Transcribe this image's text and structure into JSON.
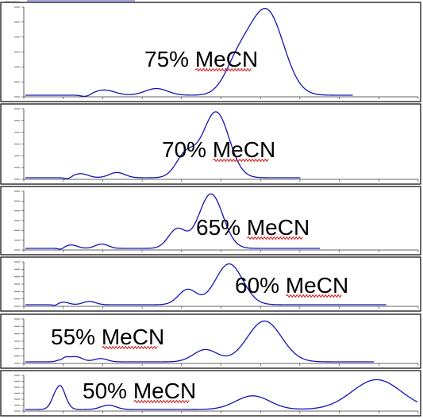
{
  "colors": {
    "trace": "#1414b4",
    "frame": "#000000",
    "axis": "#333333",
    "spellcheck": "#d40000"
  },
  "chart_data": [
    {
      "type": "line",
      "title": "75% MeCN",
      "peaks": [
        {
          "t": 0.2,
          "h": 0.04,
          "w": 0.1
        },
        {
          "t": 0.3,
          "h": 0.03,
          "w": 0.1
        },
        {
          "t": 0.8,
          "h": 0.08,
          "w": 0.12
        },
        {
          "t": 1.67,
          "h": 0.35,
          "w": 0.14
        },
        {
          "t": 1.98,
          "h": 1.0,
          "w": 0.18
        }
      ],
      "xlim": [
        -0.6,
        3.6
      ],
      "x_end": 2.9,
      "ylim": [
        0,
        1.05
      ]
    },
    {
      "type": "line",
      "title": "70% MeCN",
      "peaks": [
        {
          "t": 0.2,
          "h": 0.04,
          "w": 0.1
        },
        {
          "t": 0.3,
          "h": 0.03,
          "w": 0.1
        },
        {
          "t": 0.8,
          "h": 0.08,
          "w": 0.12
        },
        {
          "t": 1.85,
          "h": 0.35,
          "w": 0.15
        },
        {
          "t": 2.31,
          "h": 1.0,
          "w": 0.2
        }
      ],
      "xlim": [
        -0.6,
        5.4
      ],
      "x_end": 3.6,
      "ylim": [
        0,
        1.05
      ]
    },
    {
      "type": "line",
      "title": "65% MeCN",
      "peaks": [
        {
          "t": 0.2,
          "h": 0.04,
          "w": 0.1
        },
        {
          "t": 0.3,
          "h": 0.03,
          "w": 0.1
        },
        {
          "t": 0.8,
          "h": 0.08,
          "w": 0.12
        },
        {
          "t": 2.18,
          "h": 0.35,
          "w": 0.16
        },
        {
          "t": 2.8,
          "h": 1.0,
          "w": 0.22
        }
      ],
      "xlim": [
        -0.6,
        6.6
      ],
      "x_end": 4.8,
      "ylim": [
        0,
        1.05
      ]
    },
    {
      "type": "line",
      "title": "60% MeCN",
      "peaks": [
        {
          "t": 0.2,
          "h": 0.04,
          "w": 0.1
        },
        {
          "t": 0.3,
          "h": 0.03,
          "w": 0.1
        },
        {
          "t": 0.8,
          "h": 0.08,
          "w": 0.14
        },
        {
          "t": 2.95,
          "h": 0.37,
          "w": 0.2
        },
        {
          "t": 3.86,
          "h": 1.0,
          "w": 0.3
        }
      ],
      "xlim": [
        -0.6,
        8.0
      ],
      "x_end": 7.3,
      "ylim": [
        0,
        1.05
      ]
    },
    {
      "type": "line",
      "title": "55% MeCN",
      "peaks": [
        {
          "t": 0.15,
          "h": 0.1,
          "w": 0.15
        },
        {
          "t": 0.5,
          "h": 0.12,
          "w": 0.18
        },
        {
          "t": 1.2,
          "h": 0.08,
          "w": 0.2
        },
        {
          "t": 4.27,
          "h": 0.3,
          "w": 0.35
        },
        {
          "t": 6.0,
          "h": 1.0,
          "w": 0.5
        }
      ],
      "xlim": [
        -1.0,
        10.5
      ],
      "x_end": 9.2,
      "ylim": [
        0,
        1.05
      ]
    },
    {
      "type": "line",
      "title": "50% MeCN",
      "peaks": [
        {
          "t": 0.1,
          "h": 0.4,
          "w": 0.15
        },
        {
          "t": 1.4,
          "h": 0.07,
          "w": 0.2
        },
        {
          "t": 5.22,
          "h": 0.22,
          "w": 0.45
        },
        {
          "t": 8.5,
          "h": 0.48,
          "w": 0.65
        }
      ],
      "xlim": [
        -0.8,
        9.6
      ],
      "x_end": 9.6,
      "ylim": [
        0,
        0.55
      ]
    }
  ]
}
